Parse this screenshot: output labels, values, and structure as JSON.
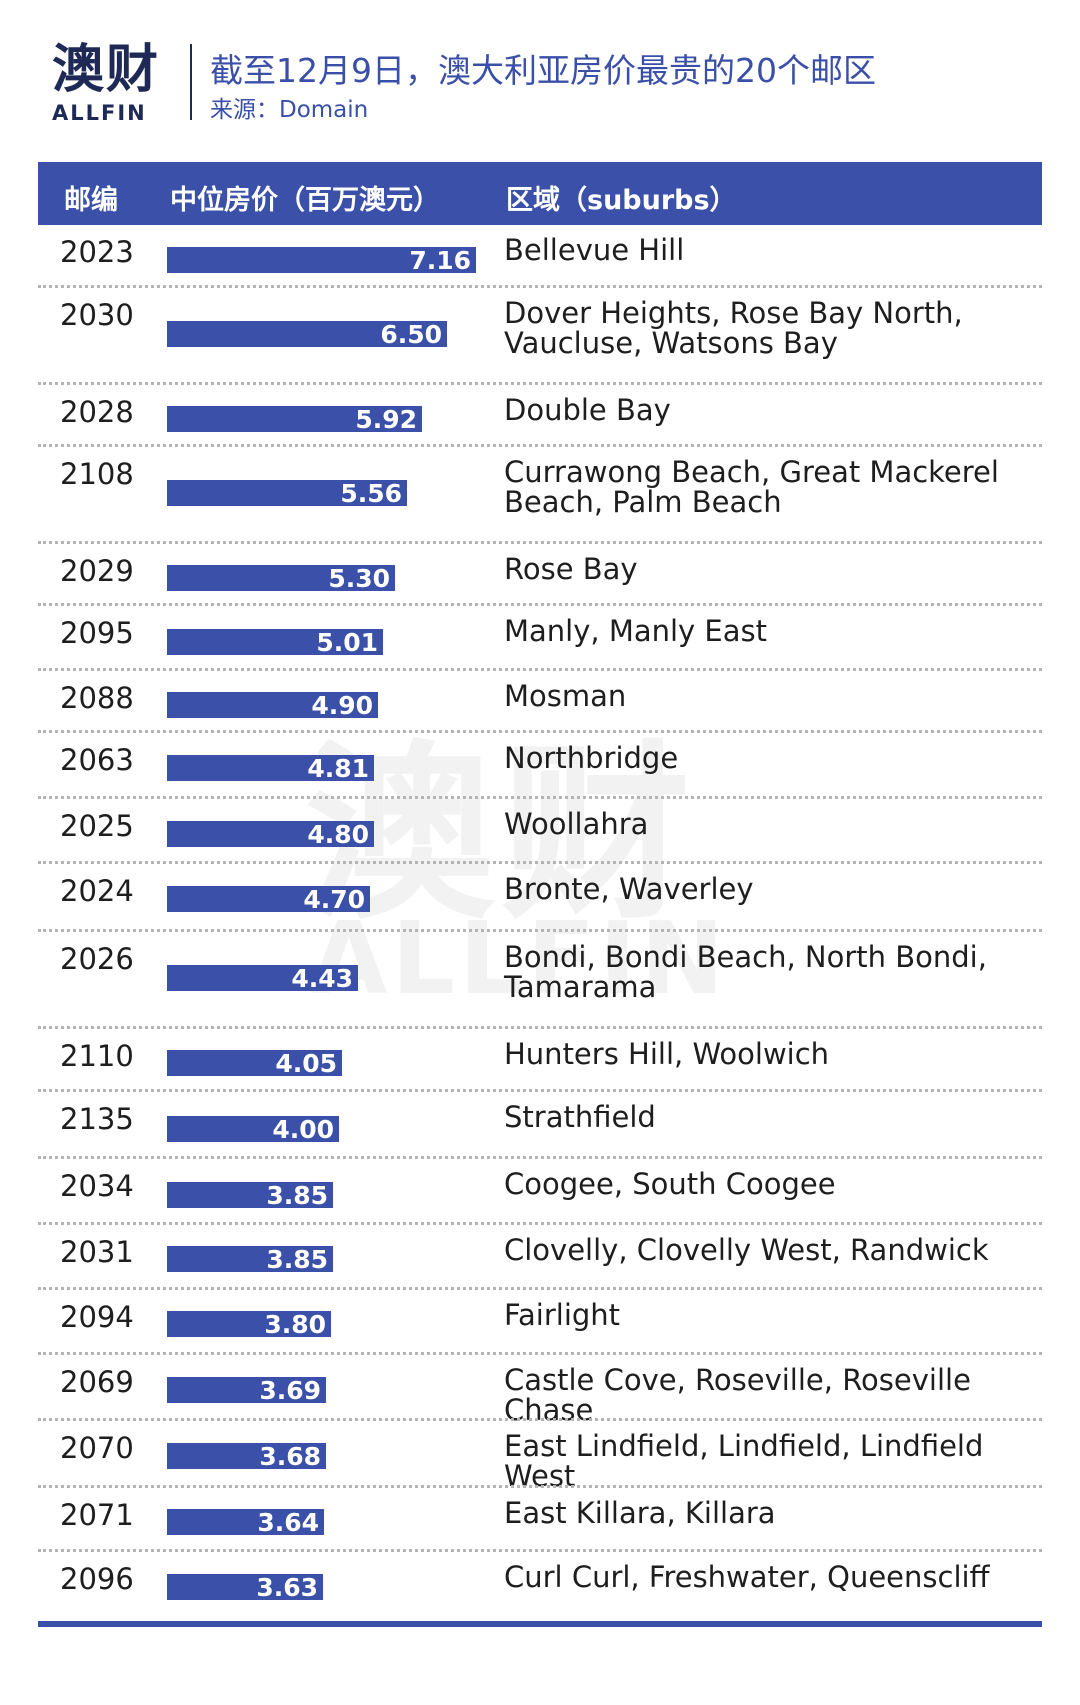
{
  "header": {
    "logo_cn": "澳财",
    "logo_en": "ALLFIN",
    "title": "截至12月9日，澳大利亚房价最贵的20个邮区",
    "source": "来源：Domain"
  },
  "watermark": {
    "cn": "澳财",
    "en": "ALLFIN"
  },
  "colors": {
    "bar": "#3b50a8",
    "header_bg": "#3b50a8",
    "title": "#3a4fa8",
    "brand": "#1e2a55"
  },
  "chart_data": {
    "type": "bar",
    "orientation": "horizontal",
    "columns": [
      "邮编",
      "中位房价（百万澳元）",
      "区域（suburbs）"
    ],
    "categories": [
      "2023",
      "2030",
      "2028",
      "2108",
      "2029",
      "2095",
      "2088",
      "2063",
      "2025",
      "2024",
      "2026",
      "2110",
      "2135",
      "2034",
      "2031",
      "2094",
      "2069",
      "2070",
      "2071",
      "2096"
    ],
    "value_labels": [
      "7.16",
      "6.50",
      "5.92",
      "5.56",
      "5.30",
      "5.01",
      "4.90",
      "4.81",
      "4.80",
      "4.70",
      "4.43",
      "4.05",
      "4.00",
      "3.85",
      "3.85",
      "3.80",
      "3.69",
      "3.68",
      "3.64",
      "3.63"
    ],
    "values": [
      7.16,
      6.5,
      5.92,
      5.56,
      5.3,
      5.01,
      4.9,
      4.81,
      4.8,
      4.7,
      4.43,
      4.05,
      4.0,
      3.85,
      3.85,
      3.8,
      3.69,
      3.68,
      3.64,
      3.63
    ],
    "suburbs": [
      "Bellevue Hill",
      "Dover Heights, Rose Bay North, Vaucluse, Watsons Bay",
      "Double Bay",
      "Currawong Beach, Great Mackerel Beach, Palm Beach",
      "Rose Bay",
      "Manly, Manly East",
      "Mosman",
      "Northbridge",
      "Woollahra",
      "Bronte, Waverley",
      "Bondi, Bondi Beach, North Bondi, Tamarama",
      "Hunters Hill, Woolwich",
      "Strathfield",
      "Coogee, South Coogee",
      "Clovelly, Clovelly West, Randwick",
      "Fairlight",
      "Castle Cove, Roseville, Roseville Chase",
      "East Lindfield, Lindfield, Lindfield West",
      "East Killara, Killara",
      "Curl Curl, Freshwater, Queenscliff"
    ]
  }
}
